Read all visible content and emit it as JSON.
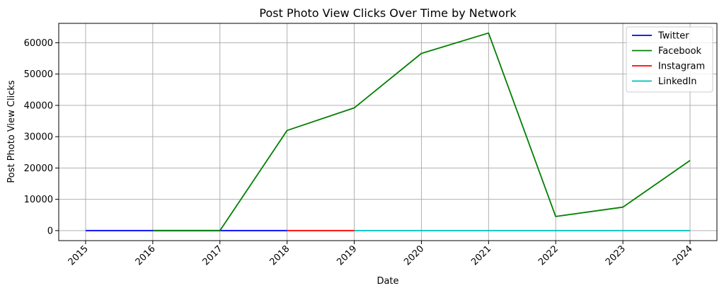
{
  "chart_data": {
    "type": "line",
    "title": "Post Photo View Clicks Over Time by Network",
    "xlabel": "Date",
    "ylabel": "Post Photo View Clicks",
    "x": [
      "2015",
      "2016",
      "2017",
      "2018",
      "2019",
      "2020",
      "2021",
      "2022",
      "2023",
      "2024"
    ],
    "xlim": [
      2014.6,
      2024.4
    ],
    "ylim": [
      -3200,
      66200
    ],
    "yticks": [
      0,
      10000,
      20000,
      30000,
      40000,
      50000,
      60000
    ],
    "grid": true,
    "legend_position": "top-right",
    "series": [
      {
        "name": "Twitter",
        "color": "#0000ff",
        "points": [
          [
            2015,
            0
          ],
          [
            2016,
            0
          ],
          [
            2017,
            0
          ],
          [
            2018,
            0
          ]
        ]
      },
      {
        "name": "Facebook",
        "color": "#008000",
        "points": [
          [
            2016,
            0
          ],
          [
            2017,
            0
          ],
          [
            2018,
            32000
          ],
          [
            2019,
            39200
          ],
          [
            2020,
            56600
          ],
          [
            2021,
            63100
          ],
          [
            2022,
            4500
          ],
          [
            2023,
            7500
          ],
          [
            2024,
            22400
          ]
        ]
      },
      {
        "name": "Instagram",
        "color": "#ff0000",
        "points": [
          [
            2018,
            0
          ],
          [
            2019,
            0
          ]
        ]
      },
      {
        "name": "LinkedIn",
        "color": "#00bfbf",
        "points": [
          [
            2019,
            0
          ],
          [
            2020,
            0
          ],
          [
            2021,
            0
          ],
          [
            2022,
            0
          ],
          [
            2023,
            0
          ],
          [
            2024,
            0
          ]
        ]
      }
    ]
  }
}
